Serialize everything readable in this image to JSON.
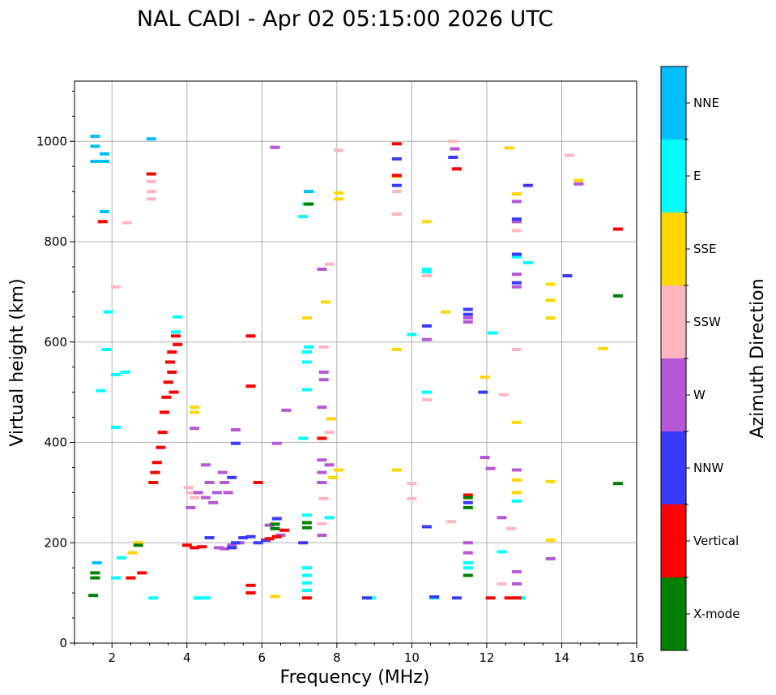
{
  "chart_data": {
    "type": "scatter",
    "title": "NAL CADI - Apr 02 05:15:00 2026 UTC",
    "xlabel": "Frequency (MHz)",
    "ylabel": "Virtual height (km)",
    "xlim": [
      1,
      16
    ],
    "ylim": [
      0,
      1120
    ],
    "xticks": [
      2,
      4,
      6,
      8,
      10,
      12,
      14,
      16
    ],
    "yticks": [
      0,
      200,
      400,
      600,
      800,
      1000
    ],
    "grid": true,
    "colorbar": {
      "title": "Azimuth Direction",
      "categories": [
        {
          "name": "X-mode",
          "color": "#008000"
        },
        {
          "name": "Vertical",
          "color": "#ff0000"
        },
        {
          "name": "NNW",
          "color": "#3a3aff"
        },
        {
          "name": "W",
          "color": "#b657d6"
        },
        {
          "name": "SSW",
          "color": "#ffb6c1"
        },
        {
          "name": "SSE",
          "color": "#ffd700"
        },
        {
          "name": "E",
          "color": "#00ffff"
        },
        {
          "name": "NNE",
          "color": "#00bfff"
        }
      ]
    },
    "series": [
      {
        "name": "NNE",
        "points": [
          [
            1.55,
            1010
          ],
          [
            1.55,
            990
          ],
          [
            1.55,
            960
          ],
          [
            1.8,
            975
          ],
          [
            1.8,
            960
          ],
          [
            1.8,
            860
          ],
          [
            1.6,
            160
          ],
          [
            3.05,
            1005
          ],
          [
            7.25,
            900
          ]
        ]
      },
      {
        "name": "E",
        "points": [
          [
            1.9,
            660
          ],
          [
            1.85,
            585
          ],
          [
            2.1,
            535
          ],
          [
            2.35,
            540
          ],
          [
            1.7,
            503
          ],
          [
            2.1,
            430
          ],
          [
            3.75,
            650
          ],
          [
            3.7,
            620
          ],
          [
            7.25,
            590
          ],
          [
            7.2,
            580
          ],
          [
            7.2,
            560
          ],
          [
            7.2,
            505
          ],
          [
            7.1,
            408
          ],
          [
            7.2,
            875
          ],
          [
            7.1,
            850
          ],
          [
            7.2,
            255
          ],
          [
            7.2,
            150
          ],
          [
            7.2,
            135
          ],
          [
            7.2,
            120
          ],
          [
            7.2,
            105
          ],
          [
            7.8,
            250
          ],
          [
            10.4,
            745
          ],
          [
            10.4,
            740
          ],
          [
            10.4,
            500
          ],
          [
            10.0,
            615
          ],
          [
            12.15,
            618
          ],
          [
            12.4,
            182
          ],
          [
            12.8,
            283
          ],
          [
            12.8,
            770
          ],
          [
            13.1,
            758
          ],
          [
            11.5,
            160
          ],
          [
            11.5,
            150
          ],
          [
            2.1,
            130
          ],
          [
            2.25,
            170
          ],
          [
            4.3,
            90
          ],
          [
            4.5,
            90
          ],
          [
            8.9,
            90
          ],
          [
            10.6,
            90
          ],
          [
            12.9,
            90
          ],
          [
            3.1,
            90
          ]
        ]
      },
      {
        "name": "SSE",
        "points": [
          [
            4.2,
            470
          ],
          [
            4.2,
            460
          ],
          [
            7.2,
            648
          ],
          [
            7.7,
            680
          ],
          [
            7.85,
            447
          ],
          [
            7.9,
            330
          ],
          [
            8.05,
            345
          ],
          [
            8.05,
            885
          ],
          [
            8.05,
            897
          ],
          [
            9.6,
            585
          ],
          [
            9.6,
            345
          ],
          [
            9.6,
            930
          ],
          [
            10.4,
            840
          ],
          [
            10.9,
            660
          ],
          [
            11.95,
            530
          ],
          [
            12.6,
            987
          ],
          [
            12.8,
            440
          ],
          [
            12.8,
            325
          ],
          [
            12.8,
            300
          ],
          [
            12.8,
            895
          ],
          [
            13.7,
            715
          ],
          [
            13.7,
            683
          ],
          [
            13.7,
            648
          ],
          [
            13.7,
            322
          ],
          [
            13.7,
            205
          ],
          [
            14.45,
            922
          ],
          [
            15.1,
            587
          ],
          [
            6.35,
            93
          ],
          [
            2.55,
            180
          ],
          [
            2.7,
            200
          ]
        ]
      },
      {
        "name": "SSW",
        "points": [
          [
            2.1,
            710
          ],
          [
            2.4,
            838
          ],
          [
            3.05,
            900
          ],
          [
            3.05,
            885
          ],
          [
            7.65,
            590
          ],
          [
            7.8,
            755
          ],
          [
            7.8,
            420
          ],
          [
            7.65,
            288
          ],
          [
            7.6,
            238
          ],
          [
            8.05,
            982
          ],
          [
            9.6,
            900
          ],
          [
            9.6,
            855
          ],
          [
            10.0,
            318
          ],
          [
            10.0,
            288
          ],
          [
            10.4,
            732
          ],
          [
            10.4,
            485
          ],
          [
            11.05,
            242
          ],
          [
            11.1,
            1000
          ],
          [
            12.45,
            495
          ],
          [
            12.65,
            228
          ],
          [
            12.4,
            118
          ],
          [
            12.8,
            822
          ],
          [
            12.8,
            585
          ],
          [
            14.2,
            972
          ],
          [
            3.05,
            920
          ],
          [
            4.05,
            310
          ],
          [
            4.1,
            300
          ],
          [
            4.2,
            290
          ]
        ]
      },
      {
        "name": "W",
        "points": [
          [
            6.35,
            988
          ],
          [
            6.4,
            398
          ],
          [
            6.65,
            464
          ],
          [
            7.6,
            745
          ],
          [
            7.65,
            540
          ],
          [
            7.65,
            525
          ],
          [
            7.6,
            470
          ],
          [
            7.6,
            365
          ],
          [
            7.6,
            340
          ],
          [
            7.6,
            320
          ],
          [
            7.6,
            215
          ],
          [
            7.8,
            355
          ],
          [
            10.4,
            605
          ],
          [
            11.15,
            985
          ],
          [
            11.5,
            648
          ],
          [
            11.5,
            640
          ],
          [
            12.1,
            348
          ],
          [
            12.4,
            250
          ],
          [
            12.8,
            880
          ],
          [
            12.8,
            840
          ],
          [
            12.8,
            735
          ],
          [
            12.8,
            710
          ],
          [
            12.8,
            345
          ],
          [
            12.8,
            142
          ],
          [
            12.8,
            118
          ],
          [
            13.7,
            168
          ],
          [
            14.45,
            915
          ],
          [
            4.2,
            428
          ],
          [
            4.5,
            355
          ],
          [
            4.6,
            320
          ],
          [
            4.8,
            300
          ],
          [
            4.95,
            340
          ],
          [
            5.0,
            320
          ],
          [
            5.1,
            300
          ],
          [
            5.3,
            425
          ],
          [
            4.1,
            270
          ],
          [
            4.3,
            300
          ],
          [
            4.5,
            290
          ],
          [
            4.7,
            280
          ],
          [
            4.85,
            190
          ],
          [
            5.0,
            188
          ],
          [
            5.2,
            195
          ],
          [
            5.4,
            200
          ],
          [
            6.2,
            235
          ],
          [
            6.5,
            215
          ],
          [
            11.5,
            200
          ],
          [
            11.5,
            180
          ],
          [
            11.95,
            370
          ]
        ]
      },
      {
        "name": "NNW",
        "points": [
          [
            9.6,
            965
          ],
          [
            9.6,
            912
          ],
          [
            10.4,
            632
          ],
          [
            10.4,
            232
          ],
          [
            11.1,
            968
          ],
          [
            11.5,
            665
          ],
          [
            11.5,
            655
          ],
          [
            11.5,
            280
          ],
          [
            11.9,
            500
          ],
          [
            12.8,
            845
          ],
          [
            12.8,
            775
          ],
          [
            12.8,
            718
          ],
          [
            13.1,
            912
          ],
          [
            14.15,
            732
          ],
          [
            4.6,
            210
          ],
          [
            5.2,
            190
          ],
          [
            5.3,
            200
          ],
          [
            5.5,
            210
          ],
          [
            5.7,
            212
          ],
          [
            5.9,
            200
          ],
          [
            6.1,
            205
          ],
          [
            6.4,
            248
          ],
          [
            7.1,
            200
          ],
          [
            10.6,
            92
          ],
          [
            11.2,
            90
          ],
          [
            8.8,
            90
          ],
          [
            5.3,
            398
          ],
          [
            5.2,
            330
          ]
        ]
      },
      {
        "name": "Vertical",
        "points": [
          [
            1.75,
            840
          ],
          [
            3.05,
            935
          ],
          [
            3.7,
            612
          ],
          [
            3.75,
            595
          ],
          [
            3.6,
            580
          ],
          [
            3.55,
            560
          ],
          [
            3.5,
            520
          ],
          [
            3.45,
            490
          ],
          [
            3.4,
            460
          ],
          [
            3.35,
            420
          ],
          [
            3.3,
            390
          ],
          [
            3.2,
            360
          ],
          [
            3.15,
            340
          ],
          [
            3.1,
            320
          ],
          [
            3.6,
            540
          ],
          [
            3.65,
            500
          ],
          [
            5.7,
            612
          ],
          [
            5.7,
            512
          ],
          [
            5.9,
            320
          ],
          [
            4.0,
            195
          ],
          [
            4.2,
            190
          ],
          [
            4.4,
            192
          ],
          [
            6.2,
            208
          ],
          [
            6.4,
            212
          ],
          [
            6.6,
            225
          ],
          [
            7.6,
            408
          ],
          [
            9.6,
            995
          ],
          [
            9.6,
            932
          ],
          [
            11.2,
            945
          ],
          [
            11.5,
            295
          ],
          [
            12.1,
            90
          ],
          [
            12.6,
            90
          ],
          [
            12.8,
            90
          ],
          [
            15.5,
            825
          ],
          [
            5.7,
            115
          ],
          [
            5.7,
            100
          ],
          [
            7.2,
            90
          ],
          [
            2.5,
            130
          ],
          [
            2.8,
            140
          ]
        ]
      },
      {
        "name": "X-mode",
        "points": [
          [
            1.55,
            140
          ],
          [
            1.55,
            130
          ],
          [
            7.25,
            875
          ],
          [
            7.2,
            240
          ],
          [
            7.2,
            230
          ],
          [
            6.35,
            237
          ],
          [
            6.35,
            228
          ],
          [
            11.5,
            290
          ],
          [
            11.5,
            270
          ],
          [
            11.5,
            135
          ],
          [
            15.5,
            692
          ],
          [
            15.5,
            318
          ],
          [
            2.7,
            195
          ],
          [
            1.5,
            95
          ]
        ]
      }
    ]
  }
}
